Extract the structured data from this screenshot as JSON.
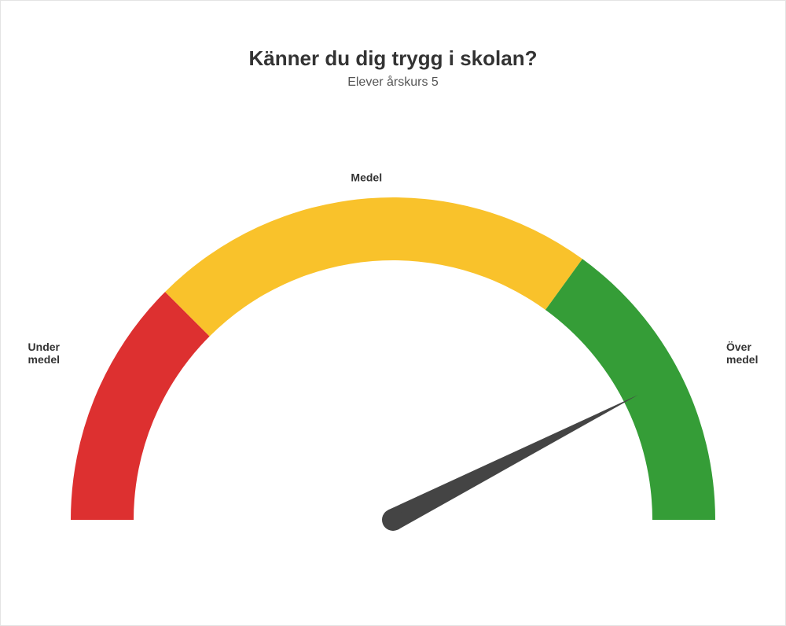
{
  "title": "Känner du dig trygg i skolan?",
  "subtitle": "Elever årskurs 5",
  "gauge": {
    "type": "gauge",
    "min": 0,
    "max": 100,
    "value": 85,
    "outer_radius": 410,
    "inner_radius": 330,
    "needle_color": "#444444",
    "needle_length": 350,
    "needle_base_width": 28,
    "background_color": "#ffffff",
    "segments": [
      {
        "from": 0,
        "to": 25,
        "color": "#dd3030",
        "label": "Under medel"
      },
      {
        "from": 25,
        "to": 70,
        "color": "#f9c22b",
        "label": "Medel"
      },
      {
        "from": 70,
        "to": 100,
        "color": "#359d37",
        "label": "Över medel"
      }
    ],
    "label_fontsize": 14,
    "label_color": "#333333",
    "title_fontsize": 26,
    "subtitle_fontsize": 16
  }
}
